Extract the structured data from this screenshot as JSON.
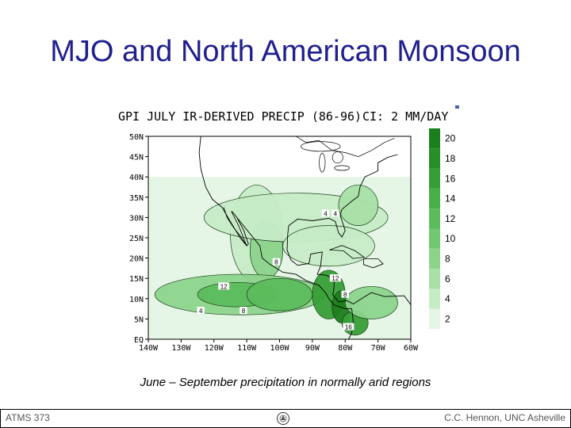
{
  "slide": {
    "title": "MJO and North American Monsoon",
    "caption": "June – September precipitation in normally arid regions"
  },
  "footer": {
    "left": "ATMS 373",
    "right": "C.C. Hennon, UNC Asheville",
    "logo_icon": "university-seal-icon"
  },
  "chart_data": {
    "type": "heatmap",
    "title": "GPI JULY IR-DERIVED PRECIP (86-96)",
    "contour_interval": "CI: 2 MM/DAY",
    "x_ticks": [
      "140W",
      "130W",
      "120W",
      "110W",
      "100W",
      "90W",
      "80W",
      "70W",
      "60W"
    ],
    "y_ticks": [
      "50N",
      "45N",
      "40N",
      "35N",
      "30N",
      "25N",
      "20N",
      "15N",
      "10N",
      "5N",
      "EQ"
    ],
    "xlim": [
      -140,
      -60
    ],
    "ylim": [
      0,
      50
    ],
    "colorbar": {
      "levels": [
        2,
        4,
        6,
        8,
        10,
        12,
        14,
        16,
        18,
        20
      ],
      "colors": [
        "#e6f6e6",
        "#c6ecc6",
        "#a8e0a8",
        "#8cd48c",
        "#72c872",
        "#5cbc5c",
        "#48ae48",
        "#379e37",
        "#288e28",
        "#1c7e1c"
      ]
    },
    "data_coverage_lat": [
      0,
      40
    ],
    "field": [
      {
        "lon": -107,
        "lat": 26,
        "rlon": 8,
        "rlat": 12,
        "level": 4
      },
      {
        "lon": -104,
        "lat": 22,
        "rlon": 5,
        "rlat": 7,
        "level": 8
      },
      {
        "lon": -95,
        "lat": 30,
        "rlon": 28,
        "rlat": 6,
        "level": 4
      },
      {
        "lon": -112,
        "lat": 11,
        "rlon": 26,
        "rlat": 5,
        "level": 8
      },
      {
        "lon": -113,
        "lat": 11,
        "rlon": 12,
        "rlat": 3,
        "level": 12
      },
      {
        "lon": -100,
        "lat": 11,
        "rlon": 10,
        "rlat": 4,
        "level": 12
      },
      {
        "lon": -85,
        "lat": 11,
        "rlon": 5,
        "rlat": 6,
        "level": 16
      },
      {
        "lon": -81,
        "lat": 8,
        "rlon": 3,
        "rlat": 4,
        "level": 20
      },
      {
        "lon": -77,
        "lat": 4,
        "rlon": 4,
        "rlat": 3,
        "level": 16
      },
      {
        "lon": -72,
        "lat": 9,
        "rlon": 8,
        "rlat": 4,
        "level": 8
      },
      {
        "lon": -85,
        "lat": 23,
        "rlon": 14,
        "rlat": 5,
        "level": 4
      },
      {
        "lon": -76,
        "lat": 33,
        "rlon": 6,
        "rlat": 5,
        "level": 6
      }
    ],
    "contour_labels": [
      {
        "text": "4",
        "lon": -83,
        "lat": 31
      },
      {
        "text": "4",
        "lon": -86,
        "lat": 31
      },
      {
        "text": "4",
        "lon": -124,
        "lat": 7
      },
      {
        "text": "8",
        "lon": -101,
        "lat": 19
      },
      {
        "text": "12",
        "lon": -117,
        "lat": 13
      },
      {
        "text": "12",
        "lon": -83,
        "lat": 15
      },
      {
        "text": "8",
        "lon": -80,
        "lat": 11
      },
      {
        "text": "8",
        "lon": -111,
        "lat": 7
      },
      {
        "text": "16",
        "lon": -79,
        "lat": 3
      }
    ]
  }
}
